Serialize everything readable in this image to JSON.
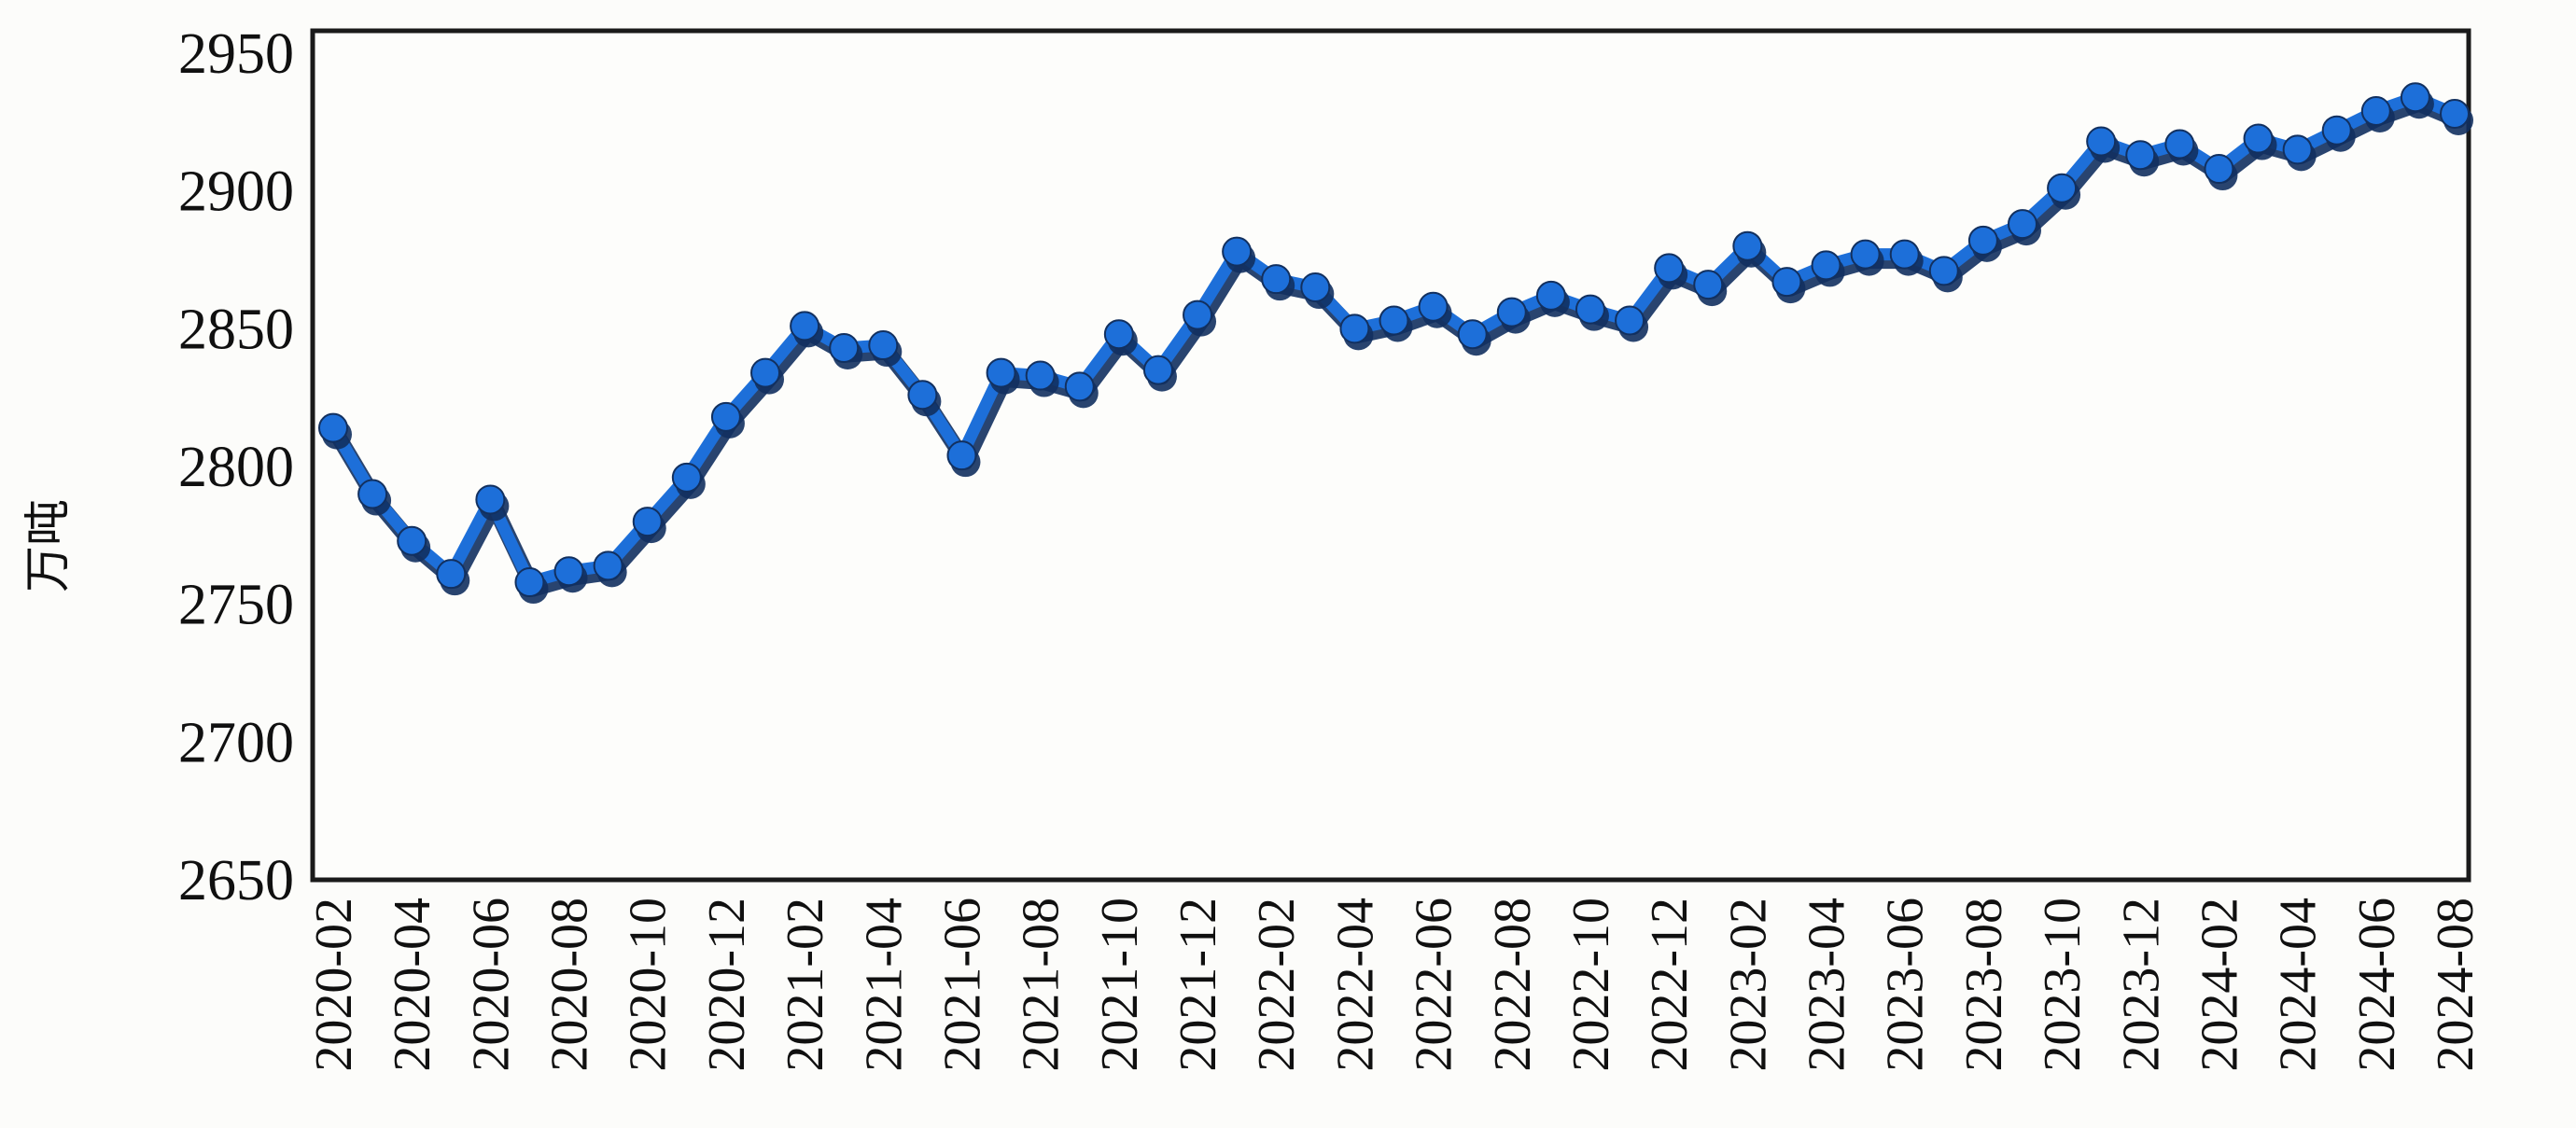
{
  "chart_data": {
    "type": "line",
    "title": "",
    "ylabel": "万吨",
    "xlabel": "",
    "ylim": [
      2650,
      2950
    ],
    "y_ticks": [
      2950,
      2900,
      2850,
      2800,
      2750,
      2700,
      2650
    ],
    "grid": false,
    "legend_position": "none",
    "x": [
      "2020-02",
      "2020-03",
      "2020-04",
      "2020-05",
      "2020-06",
      "2020-07",
      "2020-08",
      "2020-09",
      "2020-10",
      "2020-11",
      "2020-12",
      "2021-01",
      "2021-02",
      "2021-03",
      "2021-04",
      "2021-05",
      "2021-06",
      "2021-07",
      "2021-08",
      "2021-09",
      "2021-10",
      "2021-11",
      "2021-12",
      "2022-01",
      "2022-02",
      "2022-03",
      "2022-04",
      "2022-05",
      "2022-06",
      "2022-07",
      "2022-08",
      "2022-09",
      "2022-10",
      "2022-11",
      "2022-12",
      "2023-01",
      "2023-02",
      "2023-03",
      "2023-04",
      "2023-05",
      "2023-06",
      "2023-07",
      "2023-08",
      "2023-09",
      "2023-10",
      "2023-11",
      "2023-12",
      "2024-01",
      "2024-02",
      "2024-03",
      "2024-04",
      "2024-05",
      "2024-06",
      "2024-07",
      "2024-08"
    ],
    "x_tick_labels": [
      "2020-02",
      "2020-04",
      "2020-06",
      "2020-08",
      "2020-10",
      "2020-12",
      "2021-02",
      "2021-04",
      "2021-06",
      "2021-08",
      "2021-10",
      "2021-12",
      "2022-02",
      "2022-04",
      "2022-06",
      "2022-08",
      "2022-10",
      "2022-12",
      "2023-02",
      "2023-04",
      "2023-06",
      "2023-08",
      "2023-10",
      "2023-12",
      "2024-02",
      "2024-04",
      "2024-06",
      "2024-08"
    ],
    "series": [
      {
        "name": "",
        "values": [
          2814,
          2790,
          2773,
          2761,
          2788,
          2758,
          2762,
          2764,
          2780,
          2796,
          2818,
          2834,
          2851,
          2843,
          2844,
          2826,
          2804,
          2834,
          2833,
          2829,
          2848,
          2835,
          2855,
          2878,
          2868,
          2865,
          2850,
          2853,
          2858,
          2848,
          2856,
          2862,
          2857,
          2853,
          2872,
          2866,
          2880,
          2867,
          2873,
          2877,
          2877,
          2871,
          2882,
          2888,
          2901,
          2918,
          2913,
          2917,
          2908,
          2919,
          2915,
          2922,
          2929,
          2934,
          2928
        ]
      }
    ],
    "line_color": "#1d6fd9",
    "shadow_color": "#12305f",
    "frame_color": "#1a1a1a",
    "plot_background": "#fdfdfb"
  }
}
